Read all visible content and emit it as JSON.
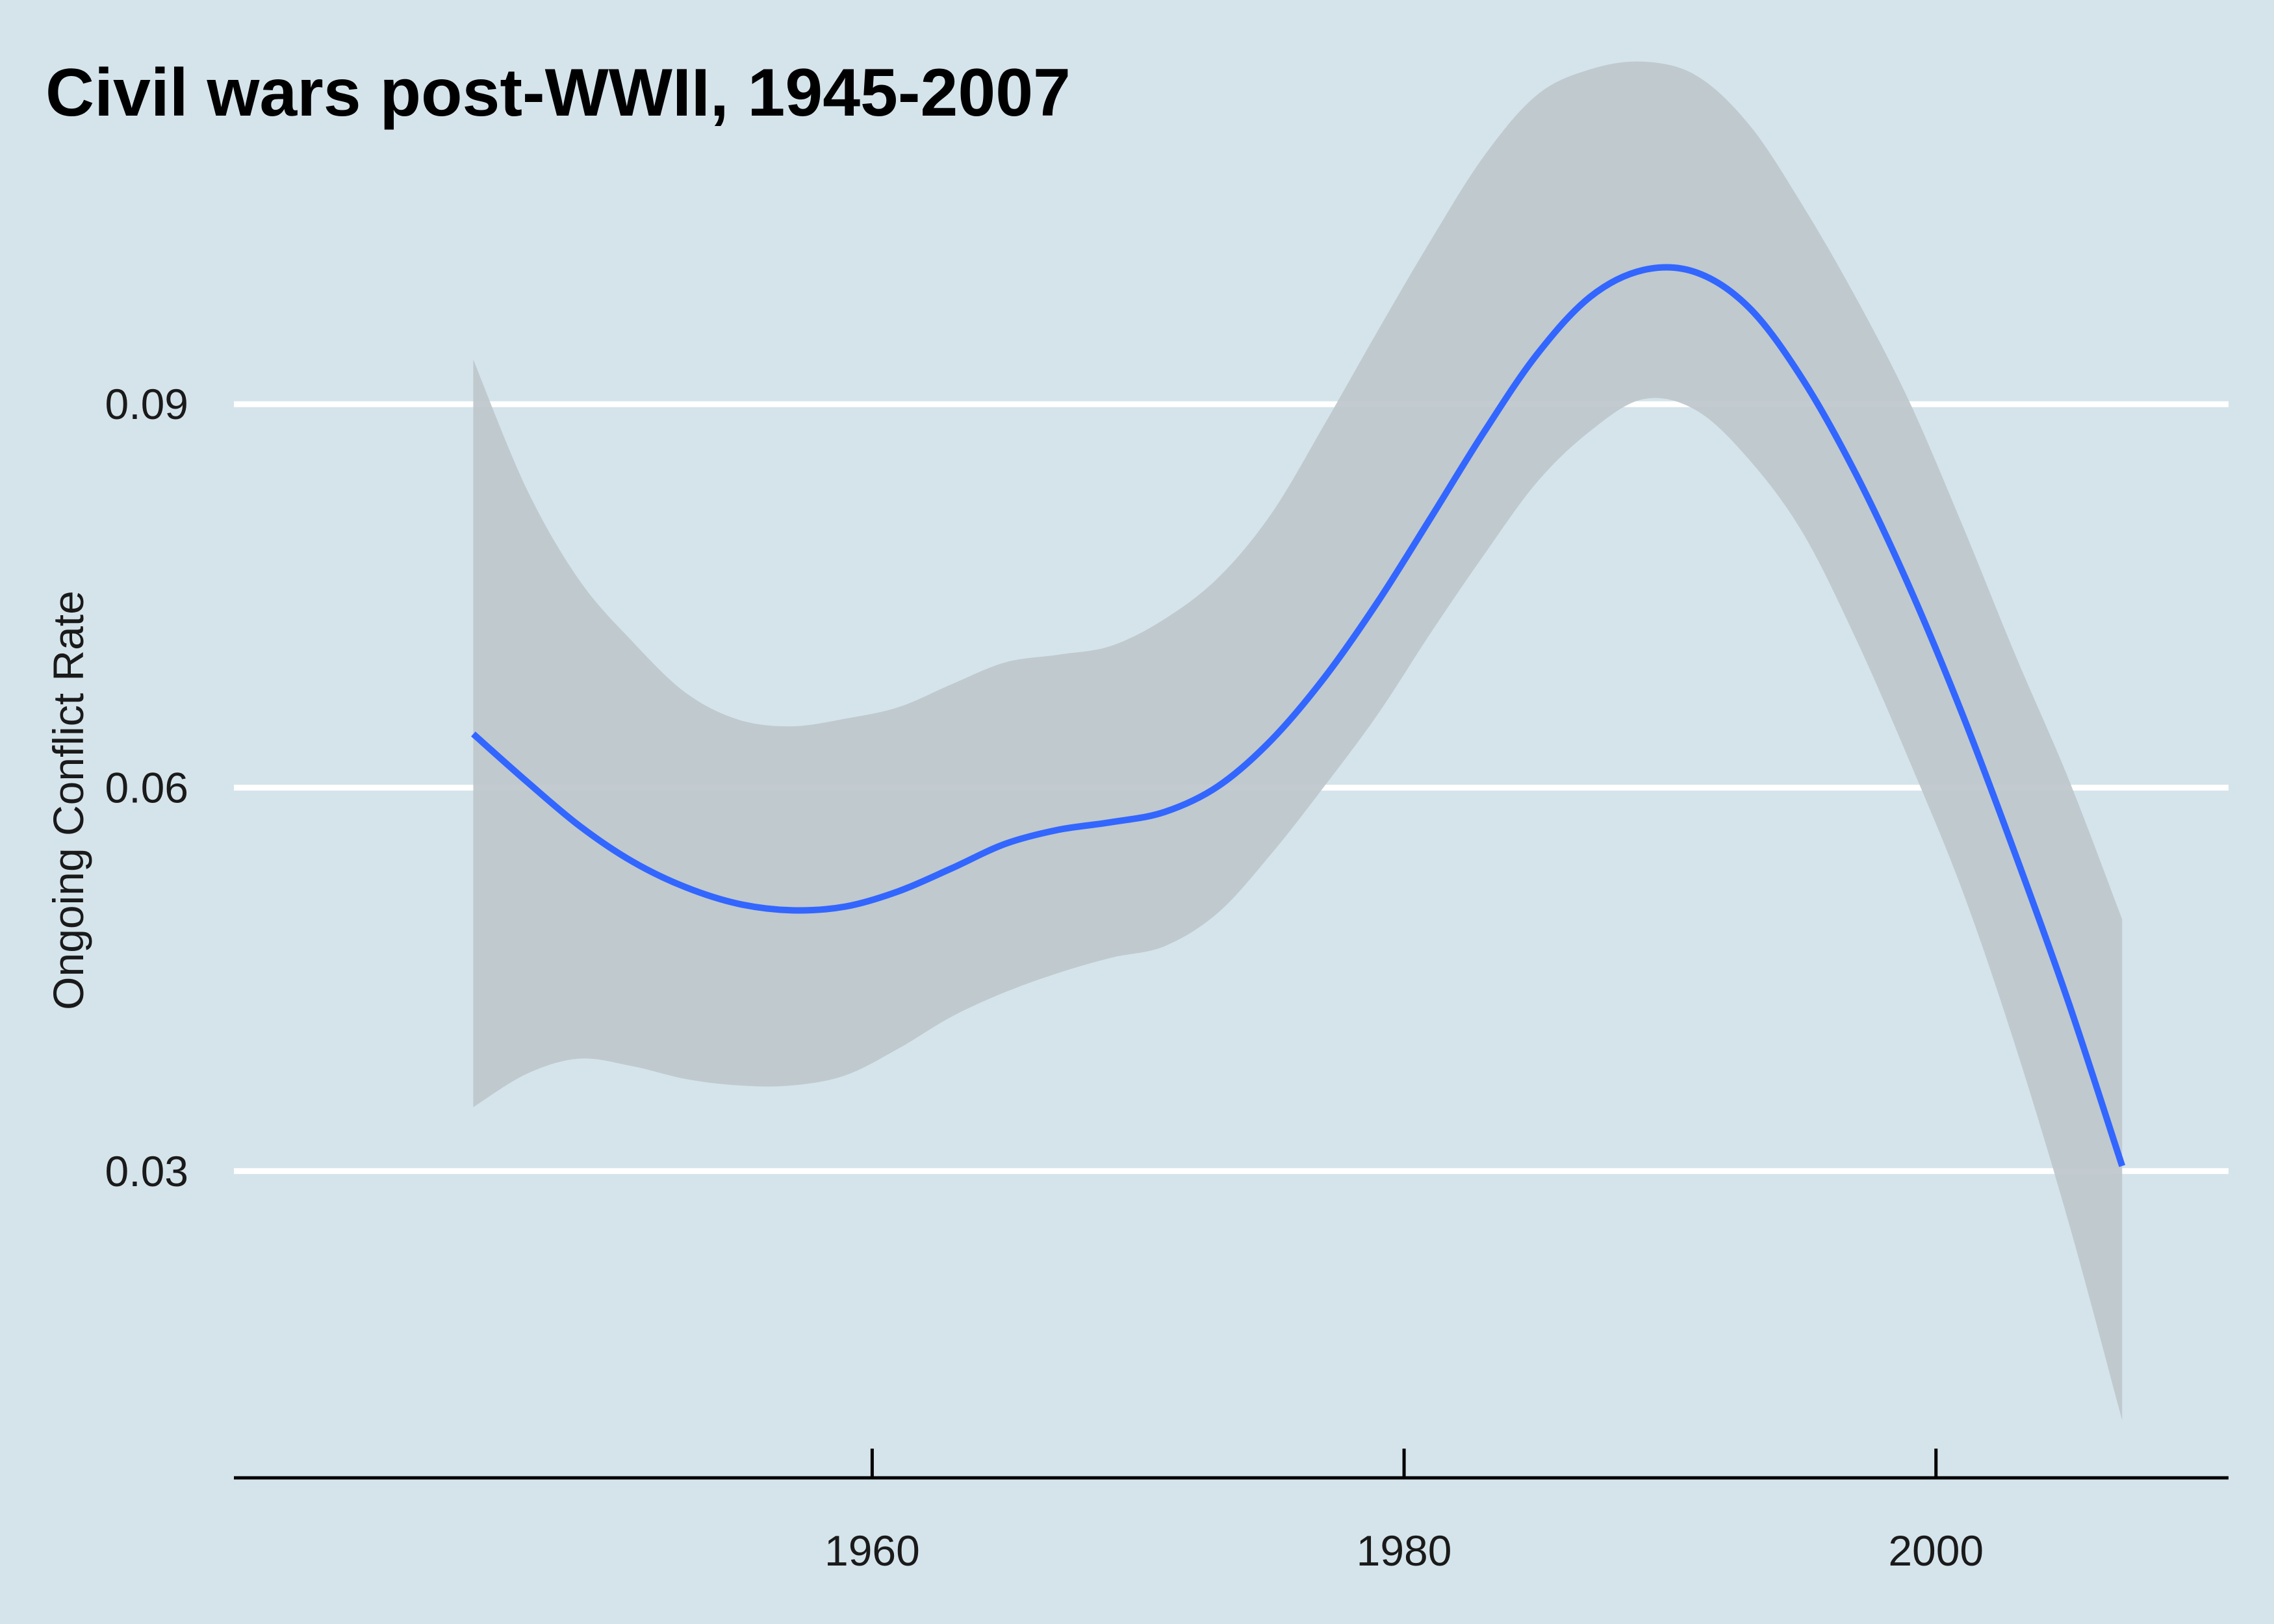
{
  "chart_data": {
    "type": "line",
    "title": "Civil wars post-WWII, 1945-2007",
    "xlabel": "",
    "ylabel": "Ongoing Conflict Rate",
    "xlim": [
      1936,
      2011
    ],
    "ylim": [
      0.006,
      0.114
    ],
    "xticks": [
      1960,
      1980,
      2000
    ],
    "xtick_labels": [
      "1960",
      "1980",
      "2000"
    ],
    "yticks": [
      0.03,
      0.06,
      0.09
    ],
    "ytick_labels": [
      "0.03",
      "0.06",
      "0.09"
    ],
    "grid": "horizontal major gridlines only",
    "legend": "none",
    "colors": {
      "background": "#d5e4eb",
      "line": "#3366ff",
      "ribbon": "#bdc5cb",
      "gridline": "#ffffff",
      "axis": "#000000"
    },
    "series": [
      {
        "x": [
          1945,
          1947,
          1949,
          1951,
          1953,
          1955,
          1957,
          1959,
          1961,
          1963,
          1965,
          1967,
          1969,
          1971,
          1973,
          1975,
          1977,
          1979,
          1981,
          1983,
          1985,
          1987,
          1989,
          1991,
          1993,
          1995,
          1997,
          1999,
          2001,
          2003,
          2005,
          2007
        ],
        "y": [
          0.0642,
          0.0605,
          0.057,
          0.0542,
          0.0522,
          0.0509,
          0.0504,
          0.0507,
          0.0519,
          0.0537,
          0.0556,
          0.0567,
          0.0573,
          0.0581,
          0.0601,
          0.0637,
          0.0686,
          0.0745,
          0.0811,
          0.0878,
          0.0939,
          0.0984,
          0.1005,
          0.1003,
          0.0975,
          0.0919,
          0.0845,
          0.0757,
          0.0657,
          0.0547,
          0.0431,
          0.0304
        ],
        "ci_upper": [
          0.0935,
          0.0834,
          0.0762,
          0.0714,
          0.0674,
          0.0653,
          0.0648,
          0.0654,
          0.0663,
          0.0681,
          0.0698,
          0.0704,
          0.0711,
          0.0732,
          0.0764,
          0.0814,
          0.0884,
          0.0957,
          0.1028,
          0.1094,
          0.1142,
          0.1162,
          0.1168,
          0.1157,
          0.1118,
          0.1055,
          0.0983,
          0.0902,
          0.0805,
          0.0703,
          0.0606,
          0.0497
        ],
        "ci_lower": [
          0.035,
          0.0376,
          0.0388,
          0.0382,
          0.0372,
          0.0367,
          0.0367,
          0.0375,
          0.0396,
          0.0421,
          0.044,
          0.0455,
          0.0467,
          0.0476,
          0.0502,
          0.0548,
          0.0601,
          0.0657,
          0.0721,
          0.0782,
          0.0839,
          0.0879,
          0.0904,
          0.0895,
          0.0856,
          0.0799,
          0.0716,
          0.0621,
          0.0519,
          0.0397,
          0.0259,
          0.0105
        ]
      }
    ]
  }
}
